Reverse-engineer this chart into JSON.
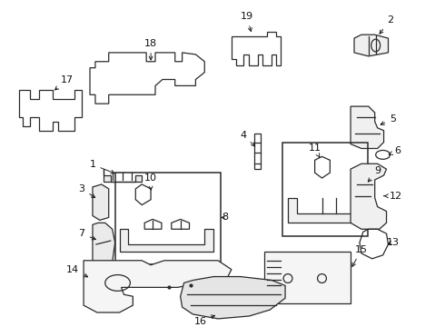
{
  "bg_color": "#ffffff",
  "line_color": "#2a2a2a",
  "text_color": "#111111",
  "font_size": 8,
  "lw": 0.9,
  "figsize": [
    4.9,
    3.6
  ],
  "dpi": 100
}
